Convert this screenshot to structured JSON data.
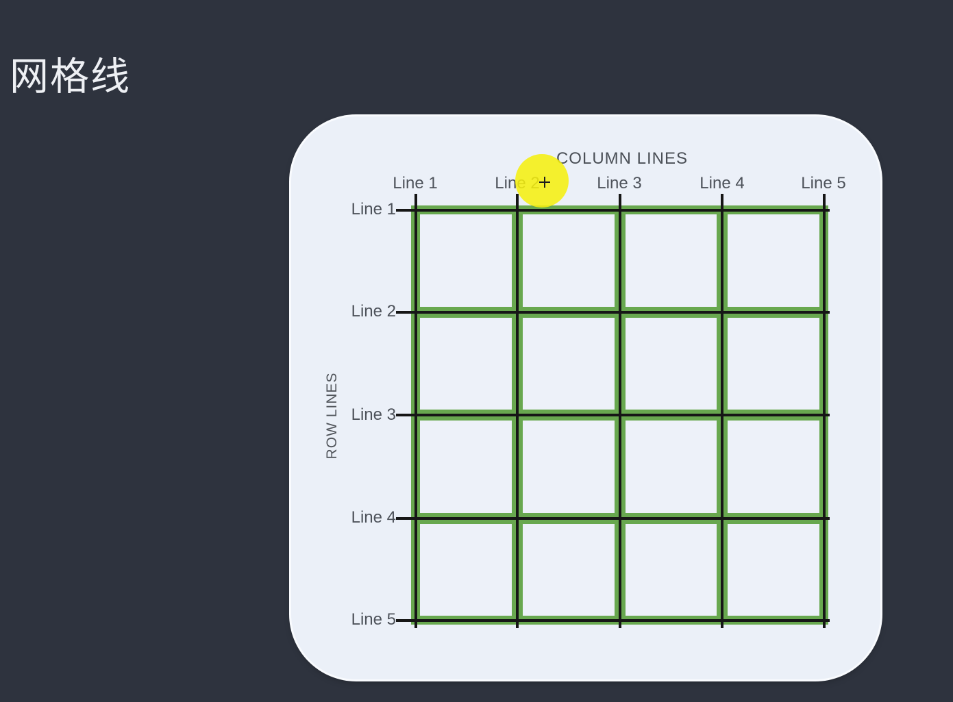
{
  "page": {
    "title": "网格线",
    "background_color": "#2e333e"
  },
  "card": {
    "column_axis_title": "COLUMN LINES",
    "row_axis_title": "ROW LINES",
    "column_labels": [
      "Line 1",
      "Line 2",
      "Line 3",
      "Line 4",
      "Line 5"
    ],
    "row_labels": [
      "Line 1",
      "Line 2",
      "Line 3",
      "Line 4",
      "Line 5"
    ],
    "grid": {
      "rows": 4,
      "columns": 4,
      "row_line_count": 5,
      "column_line_count": 5
    },
    "colors": {
      "card_background": "#ebf0f8",
      "grid_green": "#68a84f",
      "grid_line_black": "#161616",
      "label_gray": "#4d525a",
      "highlight_yellow": "#f6f00c"
    },
    "cursor_highlight": {
      "shape": "circle",
      "over_label": "Line 2",
      "cursor_type": "crosshair"
    }
  }
}
